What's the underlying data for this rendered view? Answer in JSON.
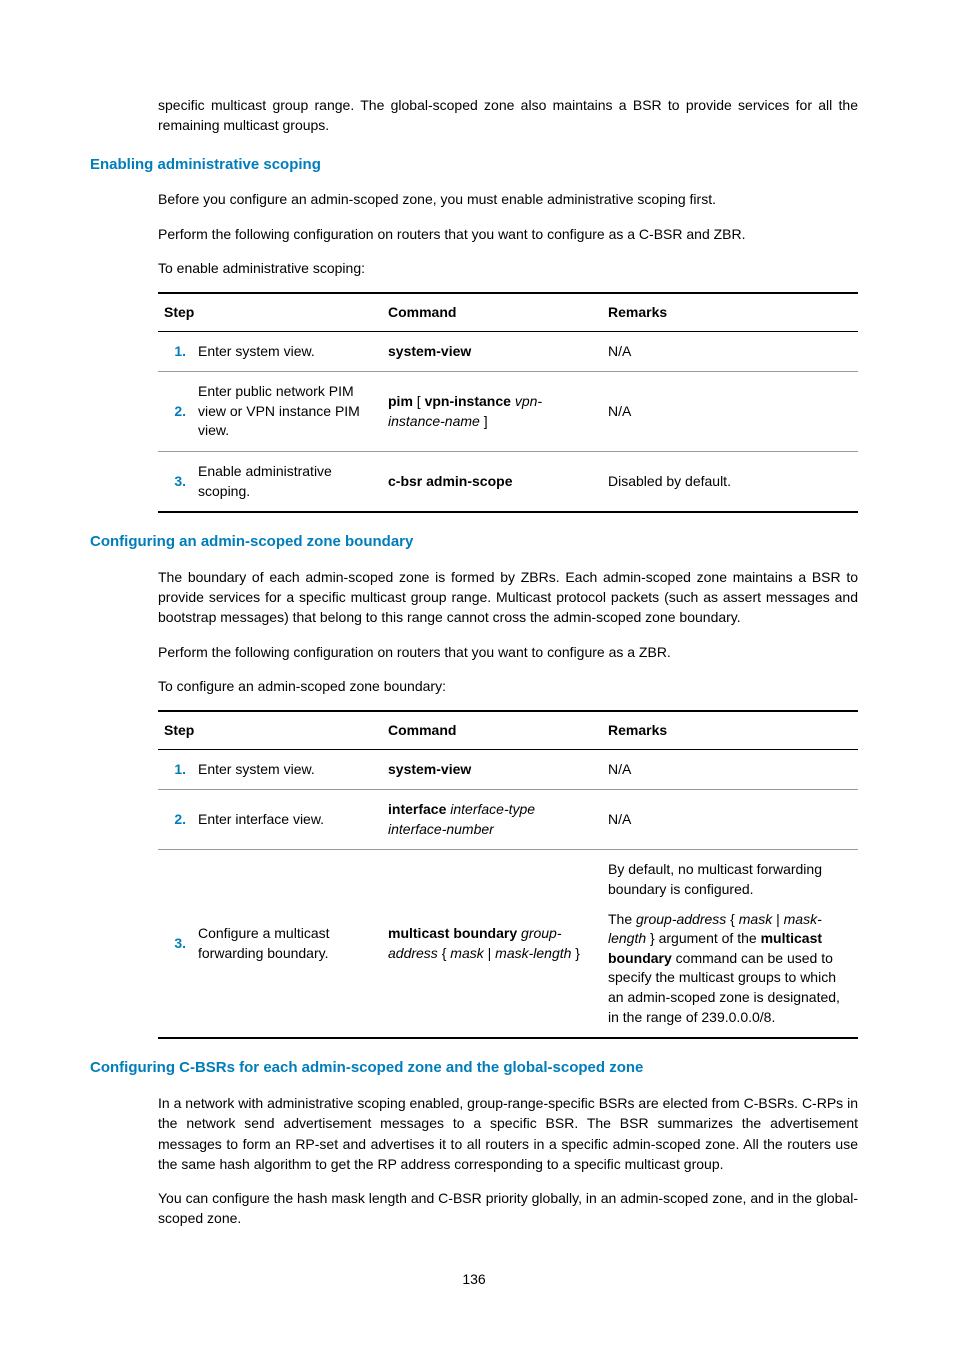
{
  "intro_para": "specific multicast group range. The global-scoped zone also maintains a BSR to provide services for all the remaining multicast groups.",
  "sec1": {
    "heading": "Enabling administrative scoping",
    "p1": "Before you configure an admin-scoped zone, you must enable administrative scoping first.",
    "p2": "Perform the following configuration on routers that you want to configure as a C-BSR and ZBR.",
    "p3": "To enable administrative scoping:",
    "table": {
      "h1": "Step",
      "h2": "Command",
      "h3": "Remarks",
      "r1": {
        "n": "1.",
        "step": "Enter system view.",
        "cmd_b": "system-view",
        "rem": "N/A"
      },
      "r2": {
        "n": "2.",
        "step": "Enter public network PIM view or VPN instance PIM view.",
        "cmd_b1": "pim",
        "cmd_t1": " [ ",
        "cmd_b2": "vpn-instance",
        "cmd_i": "vpn-instance-name",
        "cmd_t2": " ]",
        "rem": "N/A"
      },
      "r3": {
        "n": "3.",
        "step": "Enable administrative scoping.",
        "cmd_b": "c-bsr admin-scope",
        "rem": "Disabled by default."
      }
    }
  },
  "sec2": {
    "heading": "Configuring an admin-scoped zone boundary",
    "p1": "The boundary of each admin-scoped zone is formed by ZBRs. Each admin-scoped zone maintains a BSR to provide services for a specific multicast group range. Multicast protocol packets (such as assert messages and bootstrap messages) that belong to this range cannot cross the admin-scoped zone boundary.",
    "p2": "Perform the following configuration on routers that you want to configure as a ZBR.",
    "p3": "To configure an admin-scoped zone boundary:",
    "table": {
      "h1": "Step",
      "h2": "Command",
      "h3": "Remarks",
      "r1": {
        "n": "1.",
        "step": "Enter system view.",
        "cmd_b": "system-view",
        "rem": "N/A"
      },
      "r2": {
        "n": "2.",
        "step": "Enter interface view.",
        "cmd_b": "interface",
        "cmd_i1": "interface-type interface-number",
        "rem": "N/A"
      },
      "r3": {
        "n": "3.",
        "step": "Configure a multicast forwarding boundary.",
        "cmd_b": "multicast boundary",
        "cmd_i1": "group-address",
        "cmd_t1": " { ",
        "cmd_i2": "mask",
        "cmd_t2": " | ",
        "cmd_i3": " mask-length",
        "cmd_t3": " }",
        "rem_p1": "By default, no multicast forwarding boundary is configured.",
        "rem_p2a": "The ",
        "rem_p2i1": "group-address",
        "rem_p2b": " { ",
        "rem_p2i2": "mask",
        "rem_p2c": " | ",
        "rem_p2i3": "mask-length",
        "rem_p2d": " } argument of the ",
        "rem_p2bold": "multicast boundary",
        "rem_p2e": " command can be used to specify the multicast groups to which an admin-scoped zone is designated, in the range of 239.0.0.0/8."
      }
    }
  },
  "sec3": {
    "heading": "Configuring C-BSRs for each admin-scoped zone and the global-scoped zone",
    "p1": "In a network with administrative scoping enabled, group-range-specific BSRs are elected from C-BSRs. C-RPs in the network send advertisement messages to a specific BSR. The BSR summarizes the advertisement messages to form an RP-set and advertises it to all routers in a specific admin-scoped zone. All the routers use the same hash algorithm to get the RP address corresponding to a specific multicast group.",
    "p2": "You can configure the hash mask length and C-BSR priority globally, in an admin-scoped zone, and in the global-scoped zone."
  },
  "page_number": "136"
}
